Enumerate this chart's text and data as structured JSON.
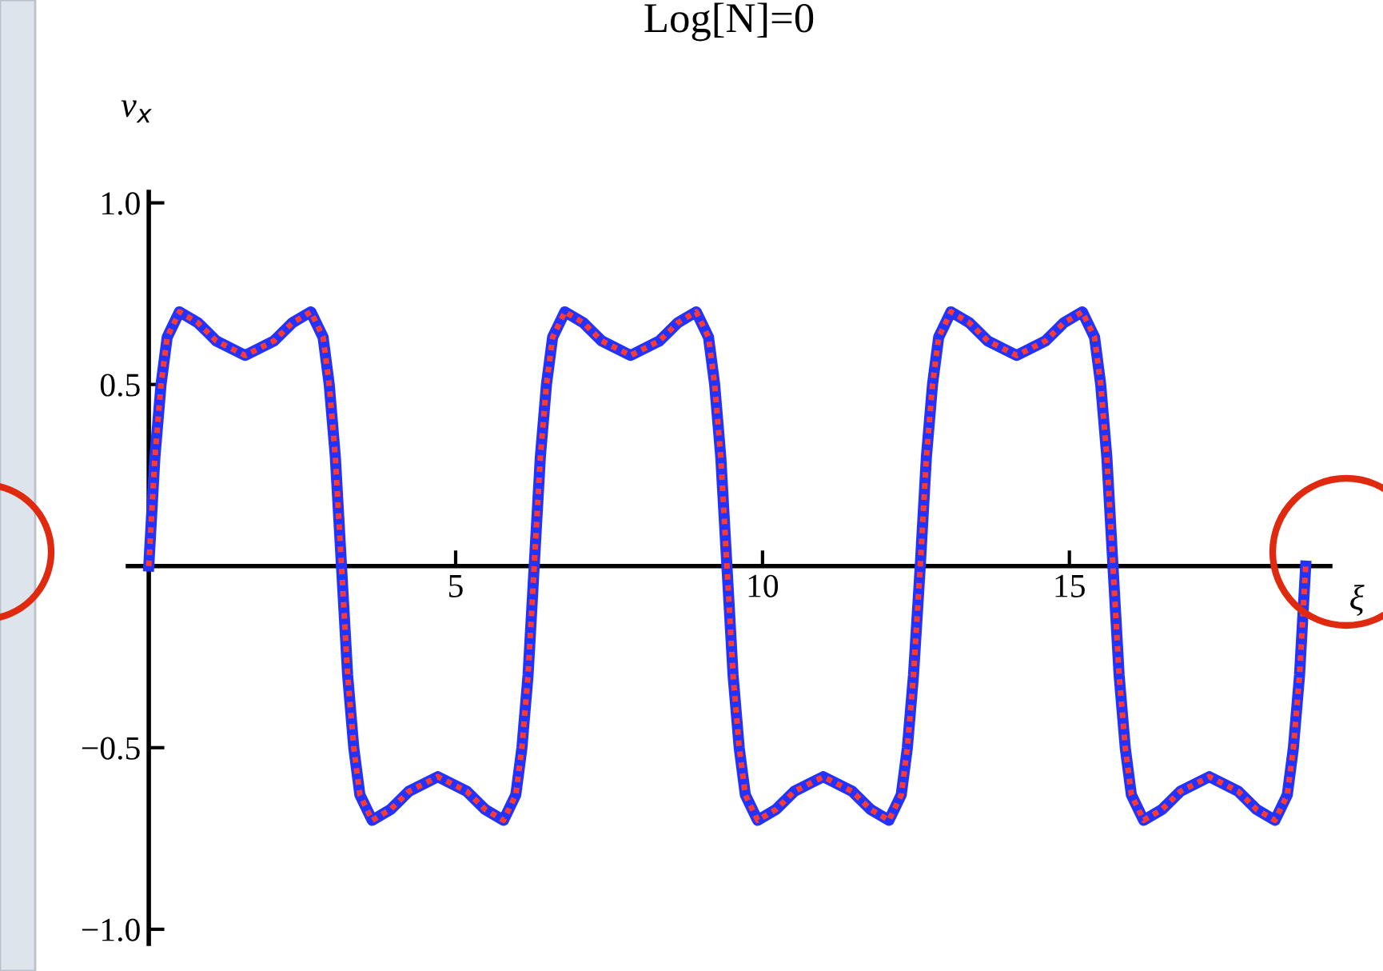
{
  "chart_data": {
    "type": "line",
    "title": "Log[N]=0",
    "xlabel": "ξ",
    "ylabel": "v$_{x}$",
    "x": [
      0,
      0.1,
      0.2,
      0.3,
      0.5,
      0.8,
      1.1,
      1.57,
      2.04,
      2.34,
      2.64,
      2.84,
      2.94,
      3.04,
      3.14,
      3.24,
      3.34,
      3.44,
      3.64,
      3.94,
      4.24,
      4.71,
      5.18,
      5.48,
      5.78,
      5.98,
      6.08,
      6.18,
      6.28,
      6.38,
      6.48,
      6.58,
      6.78,
      7.08,
      7.38,
      7.85,
      8.32,
      8.62,
      8.92,
      9.12,
      9.22,
      9.32,
      9.42,
      9.52,
      9.62,
      9.72,
      9.92,
      10.22,
      10.52,
      10.99,
      11.46,
      11.76,
      12.06,
      12.26,
      12.36,
      12.46,
      12.57,
      12.67,
      12.77,
      12.87,
      13.07,
      13.37,
      13.67,
      14.14,
      14.61,
      14.91,
      15.21,
      15.41,
      15.51,
      15.61,
      15.71,
      15.81,
      15.91,
      16.01,
      16.21,
      16.51,
      16.81,
      17.28,
      17.75,
      18.05,
      18.35,
      18.55,
      18.65,
      18.75,
      18.85
    ],
    "series": [
      {
        "color": "#2233ff",
        "line_style": "solid",
        "values": [
          0,
          0.3,
          0.5,
          0.63,
          0.7,
          0.67,
          0.62,
          0.58,
          0.62,
          0.67,
          0.7,
          0.63,
          0.5,
          0.3,
          0,
          -0.3,
          -0.5,
          -0.63,
          -0.7,
          -0.67,
          -0.62,
          -0.58,
          -0.62,
          -0.67,
          -0.7,
          -0.63,
          -0.5,
          -0.3,
          0,
          0.3,
          0.5,
          0.63,
          0.7,
          0.67,
          0.62,
          0.58,
          0.62,
          0.67,
          0.7,
          0.63,
          0.5,
          0.3,
          0,
          -0.3,
          -0.5,
          -0.63,
          -0.7,
          -0.67,
          -0.62,
          -0.58,
          -0.62,
          -0.67,
          -0.7,
          -0.63,
          -0.5,
          -0.3,
          0,
          0.3,
          0.5,
          0.63,
          0.7,
          0.67,
          0.62,
          0.58,
          0.62,
          0.67,
          0.7,
          0.63,
          0.5,
          0.3,
          0,
          -0.3,
          -0.5,
          -0.63,
          -0.7,
          -0.67,
          -0.62,
          -0.58,
          -0.62,
          -0.67,
          -0.7,
          -0.63,
          -0.5,
          -0.3,
          0
        ]
      },
      {
        "color": "#ff3b2f",
        "line_style": "dashed",
        "values": [
          0,
          0.3,
          0.5,
          0.63,
          0.7,
          0.67,
          0.62,
          0.58,
          0.62,
          0.67,
          0.7,
          0.63,
          0.5,
          0.3,
          0,
          -0.3,
          -0.5,
          -0.63,
          -0.7,
          -0.67,
          -0.62,
          -0.58,
          -0.62,
          -0.67,
          -0.7,
          -0.63,
          -0.5,
          -0.3,
          0,
          0.3,
          0.5,
          0.63,
          0.7,
          0.67,
          0.62,
          0.58,
          0.62,
          0.67,
          0.7,
          0.63,
          0.5,
          0.3,
          0,
          -0.3,
          -0.5,
          -0.63,
          -0.7,
          -0.67,
          -0.62,
          -0.58,
          -0.62,
          -0.67,
          -0.7,
          -0.63,
          -0.5,
          -0.3,
          0,
          0.3,
          0.5,
          0.63,
          0.7,
          0.67,
          0.62,
          0.58,
          0.62,
          0.67,
          0.7,
          0.63,
          0.5,
          0.3,
          0,
          -0.3,
          -0.5,
          -0.63,
          -0.7,
          -0.67,
          -0.62,
          -0.58,
          -0.62,
          -0.67,
          -0.7,
          -0.63,
          -0.5,
          -0.3,
          0
        ]
      }
    ],
    "xlim": [
      -0.34,
      19.25
    ],
    "ylim": [
      -1.04,
      1.03
    ],
    "xticks": [
      5,
      10,
      15
    ],
    "yticks": [
      {
        "value": -1.0,
        "label": "−1.0"
      },
      {
        "value": -0.5,
        "label": "−0.5"
      },
      0.5,
      {
        "value": 1.0,
        "label": "1.0"
      }
    ],
    "grid": false,
    "legend": false,
    "marker": "none"
  }
}
